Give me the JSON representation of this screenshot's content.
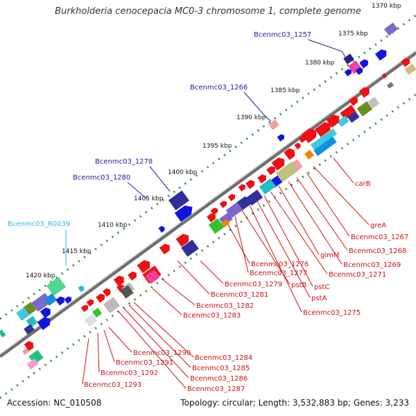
{
  "title": "Burkholderia cenocepacia MC0-3 chromosome 1, complete genome",
  "footer": {
    "accession": "Accession: NC_010508",
    "summary": "Topology: circular; Length: 3,532,883 bp; Genes: 3,233"
  },
  "colors": {
    "backbone": "#777777",
    "scale_dots": "#2e8b2e",
    "label_top": "#1a1aa6",
    "label_rna": "#30b8e0",
    "label_bottom": "#cc1111",
    "leader_top": "#1a1aa6",
    "leader_bottom": "#cc1111"
  },
  "scale_ticks": [
    "1370 kbp",
    "1375 kbp",
    "1380 kbp",
    "1385 kbp",
    "1390 kbp",
    "1395 kbp",
    "1400 kbp",
    "1405 kbp",
    "1410 kbp",
    "1415 kbp",
    "1420 kbp"
  ],
  "labels_top": [
    "Bcenmc03_1257",
    "Bcenmc03_1266",
    "Bcenmc03_1278",
    "Bcenmc03_1280",
    "Bcenmc03_R0039"
  ],
  "labels_right": [
    "carB",
    "greA",
    "Bcenmc03_1267",
    "Bcenmc03_1268",
    "Bcenmc03_1269",
    "glmM",
    "Bcenmc03_1271",
    "pstC",
    "pstA",
    "Bcenmc03_1275",
    "pstB",
    "Bcenmc03_1277",
    "Bcenmc03_1276",
    "Bcenmc03_1279",
    "Bcenmc03_1281",
    "Bcenmc03_1282",
    "Bcenmc03_1283"
  ],
  "labels_bottom": [
    "Bcenmc03_1284",
    "Bcenmc03_1285",
    "Bcenmc03_1286",
    "Bcenmc03_1287",
    "Bcenmc03_1290",
    "Bcenmc03_1291",
    "Bcenmc03_1292",
    "Bcenmc03_1293"
  ]
}
